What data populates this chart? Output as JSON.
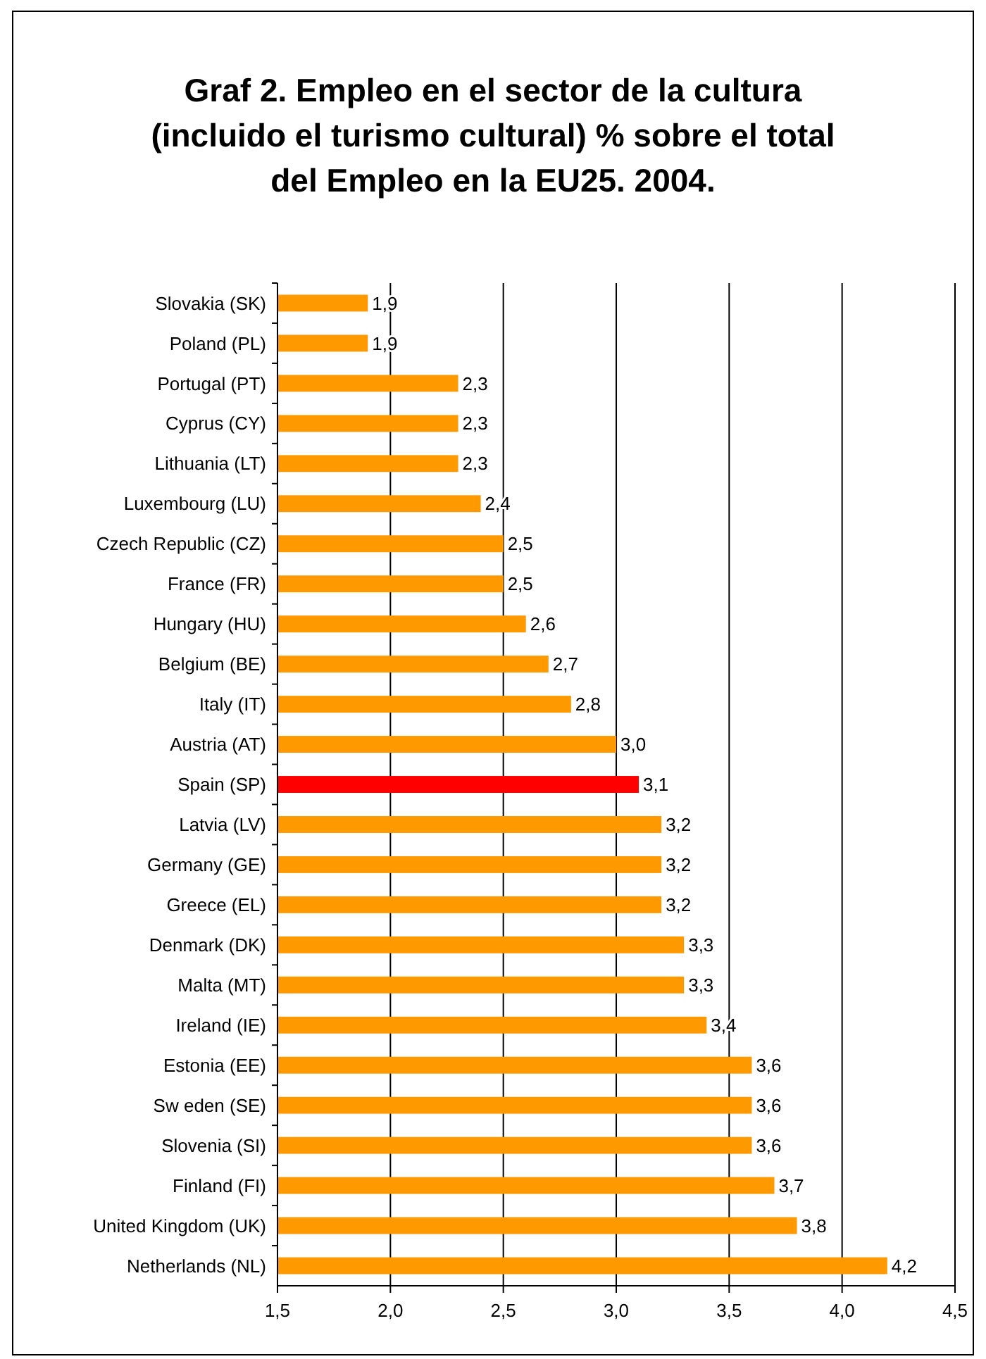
{
  "chart_data": {
    "type": "bar",
    "orientation": "horizontal",
    "title": "Graf 2. Empleo en el sector de la cultura\n(incluido el turismo cultural)  % sobre el total\ndel Empleo en la EU25. 2004.",
    "categories": [
      "Slovakia (SK)",
      "Poland (PL)",
      "Portugal (PT)",
      "Cyprus (CY)",
      "Lithuania (LT)",
      "Luxembourg (LU)",
      "Czech Republic (CZ)",
      "France (FR)",
      "Hungary (HU)",
      "Belgium (BE)",
      "Italy (IT)",
      "Austria (AT)",
      "Spain (SP)",
      "Latvia (LV)",
      "Germany (GE)",
      "Greece (EL)",
      "Denmark (DK)",
      "Malta (MT)",
      "Ireland (IE)",
      "Estonia (EE)",
      "Sw eden (SE)",
      "Slovenia (SI)",
      "Finland (FI)",
      "United Kingdom (UK)",
      "Netherlands (NL)"
    ],
    "values": [
      1.9,
      1.9,
      2.3,
      2.3,
      2.3,
      2.4,
      2.5,
      2.5,
      2.6,
      2.7,
      2.8,
      3.0,
      3.1,
      3.2,
      3.2,
      3.2,
      3.3,
      3.3,
      3.4,
      3.6,
      3.6,
      3.6,
      3.7,
      3.8,
      4.2
    ],
    "value_labels": [
      "1,9",
      "1,9",
      "2,3",
      "2,3",
      "2,3",
      "2,4",
      "2,5",
      "2,5",
      "2,6",
      "2,7",
      "2,8",
      "3,0",
      "3,1",
      "3,2",
      "3,2",
      "3,2",
      "3,3",
      "3,3",
      "3,4",
      "3,6",
      "3,6",
      "3,6",
      "3,7",
      "3,8",
      "4,2"
    ],
    "colors": [
      "#ff9900",
      "#ff9900",
      "#ff9900",
      "#ff9900",
      "#ff9900",
      "#ff9900",
      "#ff9900",
      "#ff9900",
      "#ff9900",
      "#ff9900",
      "#ff9900",
      "#ff9900",
      "#ff0000",
      "#ff9900",
      "#ff9900",
      "#ff9900",
      "#ff9900",
      "#ff9900",
      "#ff9900",
      "#ff9900",
      "#ff9900",
      "#ff9900",
      "#ff9900",
      "#ff9900",
      "#ff9900"
    ],
    "xlim": [
      1.5,
      4.5
    ],
    "xticks": [
      {
        "value": 1.5,
        "label": "1,5"
      },
      {
        "value": 2.0,
        "label": "2,0"
      },
      {
        "value": 2.5,
        "label": "2,5"
      },
      {
        "value": 3.0,
        "label": "3,0"
      },
      {
        "value": 3.5,
        "label": "3,5"
      },
      {
        "value": 4.0,
        "label": "4,0"
      },
      {
        "value": 4.5,
        "label": "4,5"
      }
    ],
    "grid": "x",
    "legend": false
  }
}
